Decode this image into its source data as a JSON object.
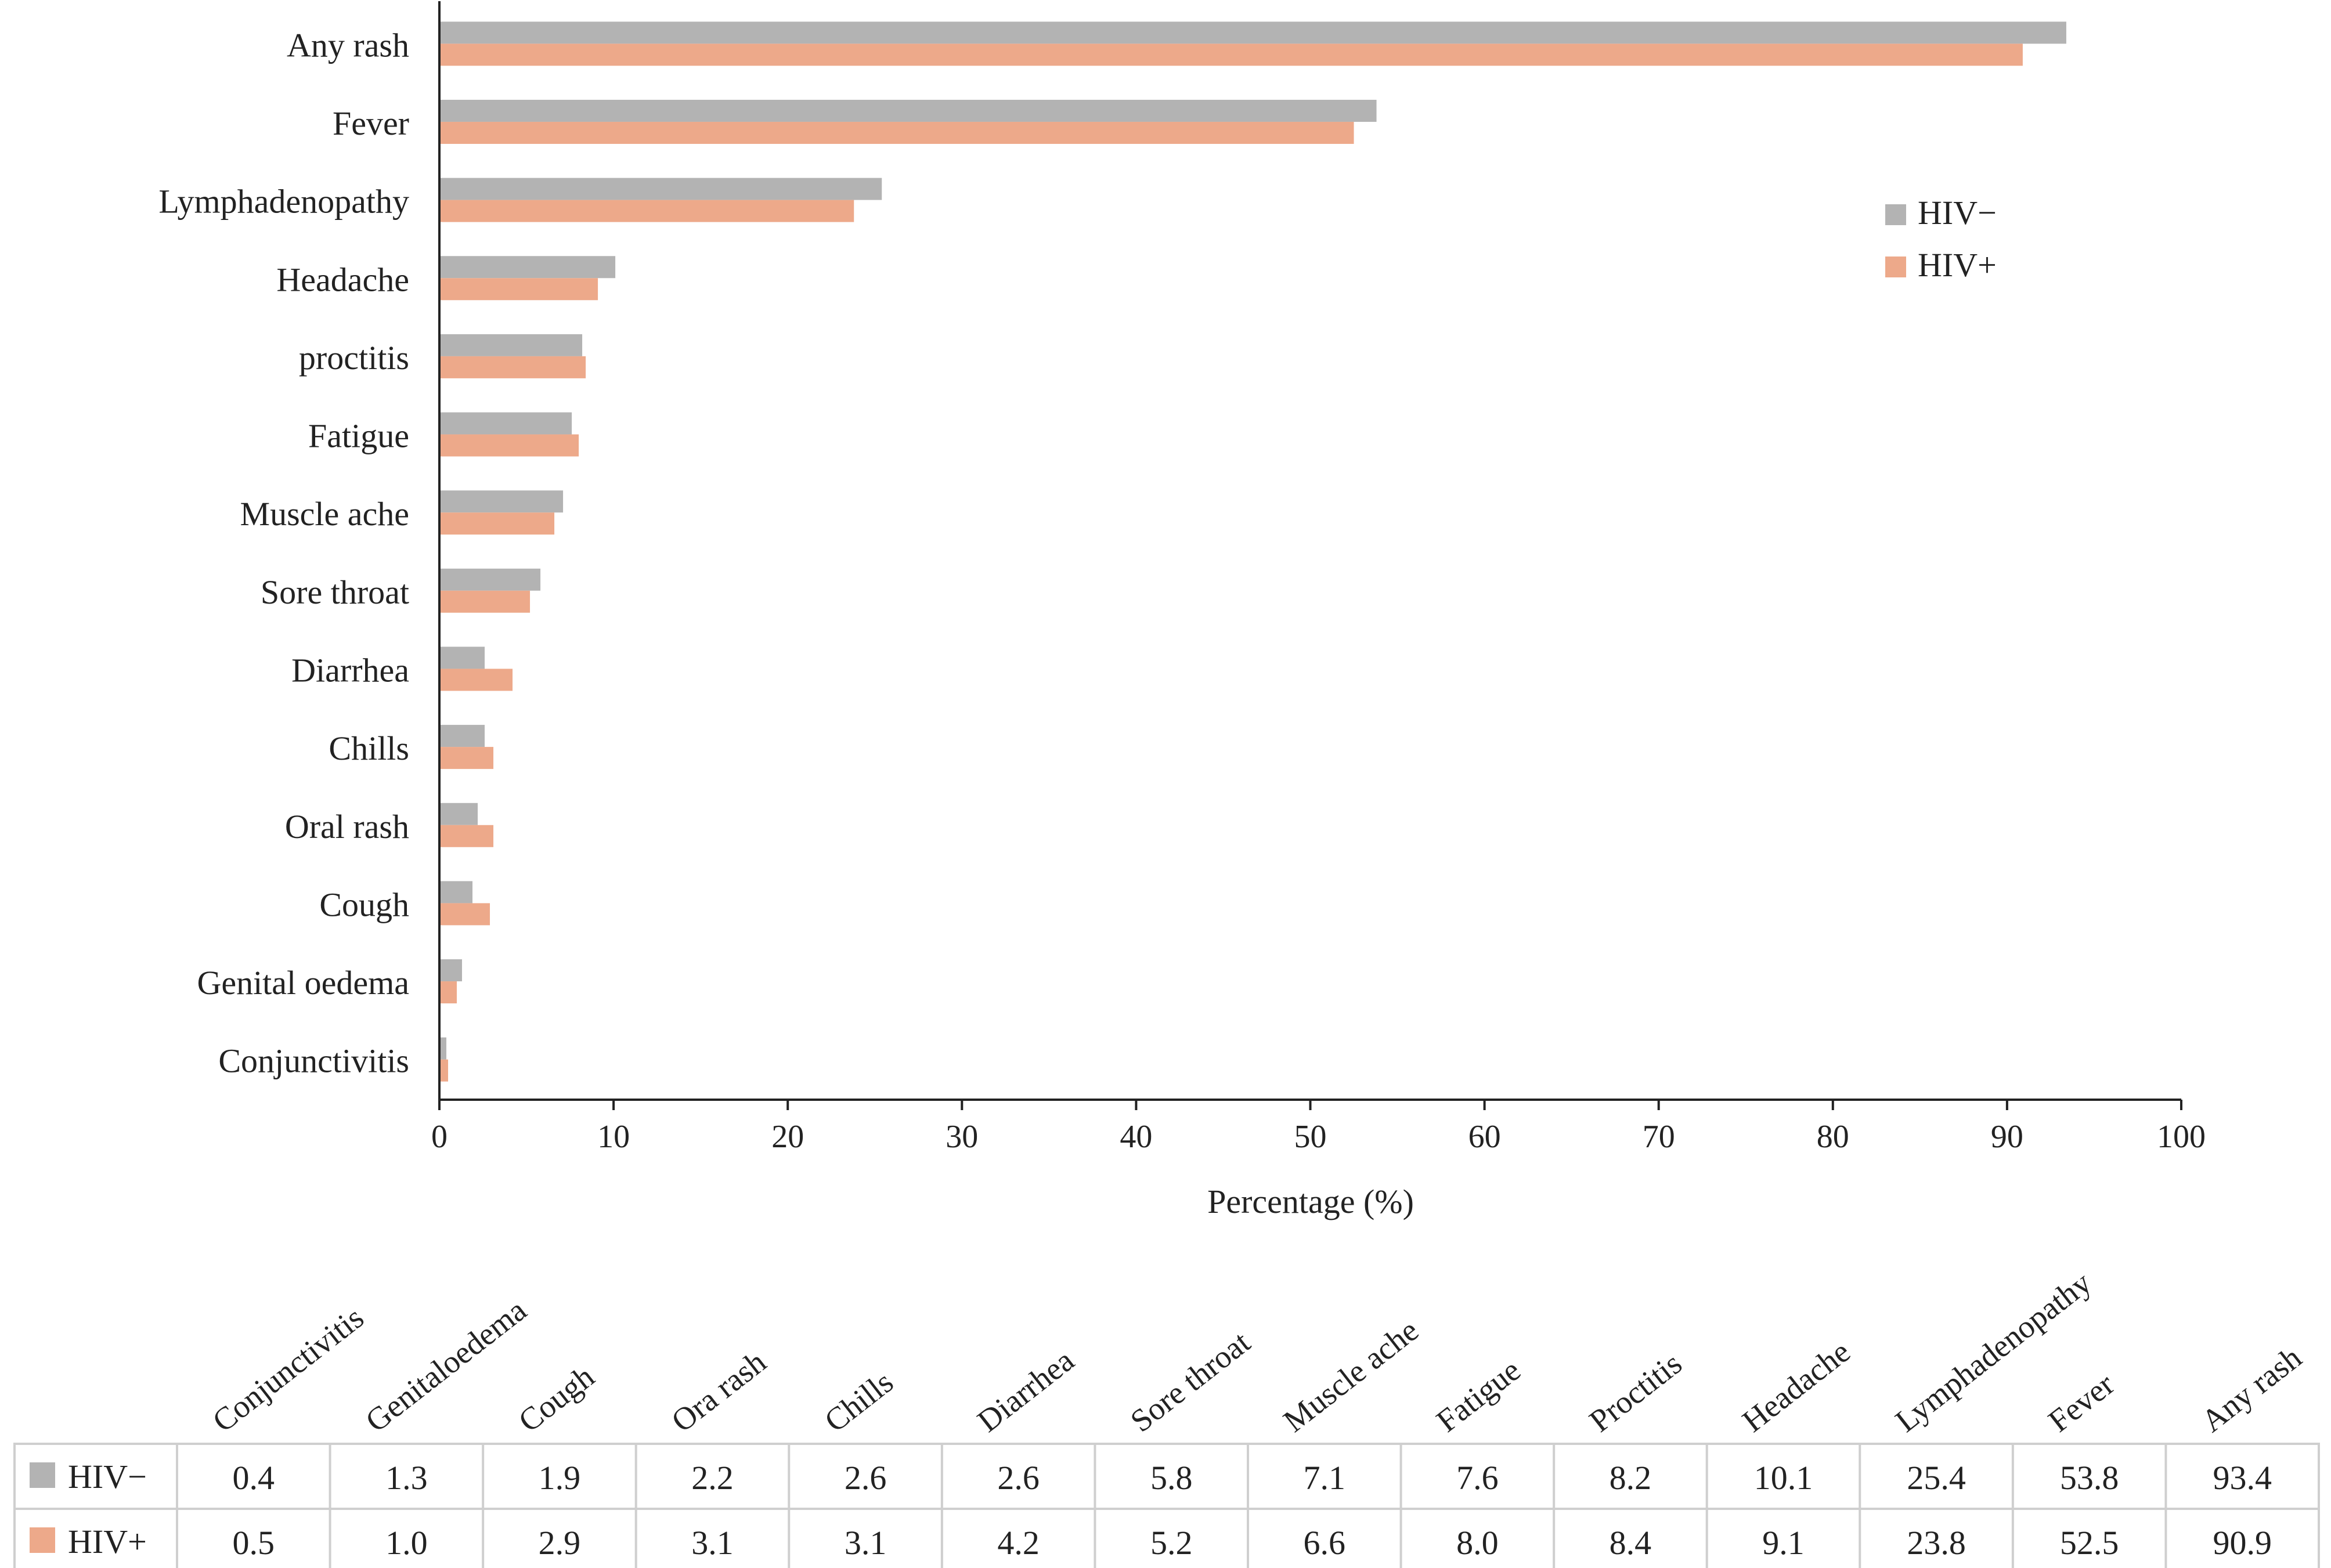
{
  "chart_data": {
    "type": "bar",
    "orientation": "horizontal",
    "categories": [
      "Any rash",
      "Fever",
      "Lymphadenopathy",
      "Headache",
      "proctitis",
      "Fatigue",
      "Muscle ache",
      "Sore throat",
      "Diarrhea",
      "Chills",
      "Oral rash",
      "Cough",
      "Genital oedema",
      "Conjunctivitis"
    ],
    "series": [
      {
        "name": "HIV−",
        "color": "#b3b3b3",
        "values": [
          93.4,
          53.8,
          25.4,
          10.1,
          8.2,
          7.6,
          7.1,
          5.8,
          2.6,
          2.6,
          2.2,
          1.9,
          1.3,
          0.4
        ]
      },
      {
        "name": "HIV+",
        "color": "#eda98a",
        "values": [
          90.9,
          52.5,
          23.8,
          9.1,
          8.4,
          8.0,
          6.6,
          5.2,
          4.2,
          3.1,
          3.1,
          2.9,
          1.0,
          0.5
        ]
      }
    ],
    "xlabel": "Percentage (%)",
    "xlim": [
      0,
      100
    ],
    "xticks": [
      0,
      10,
      20,
      30,
      40,
      50,
      60,
      70,
      80,
      90,
      100
    ],
    "grid": false,
    "legend_position": "top-right",
    "data_table": {
      "columns": [
        "Conjunctivitis",
        "Genitaloedema",
        "Cough",
        "Ora rash",
        "Chills",
        "Diarrhea",
        "Sore throat",
        "Muscle ache",
        "Fatigue",
        "Proctitis",
        "Headache",
        "Lymphadenopathy",
        "Fever",
        "Any rash"
      ],
      "rows": [
        {
          "label": "HIV−",
          "color": "#b3b3b3",
          "values": [
            "0.4",
            "1.3",
            "1.9",
            "2.2",
            "2.6",
            "2.6",
            "5.8",
            "7.1",
            "7.6",
            "8.2",
            "10.1",
            "25.4",
            "53.8",
            "93.4"
          ]
        },
        {
          "label": "HIV+",
          "color": "#eda98a",
          "values": [
            "0.5",
            "1.0",
            "2.9",
            "3.1",
            "3.1",
            "4.2",
            "5.2",
            "6.6",
            "8.0",
            "8.4",
            "9.1",
            "23.8",
            "52.5",
            "90.9"
          ]
        }
      ]
    }
  }
}
